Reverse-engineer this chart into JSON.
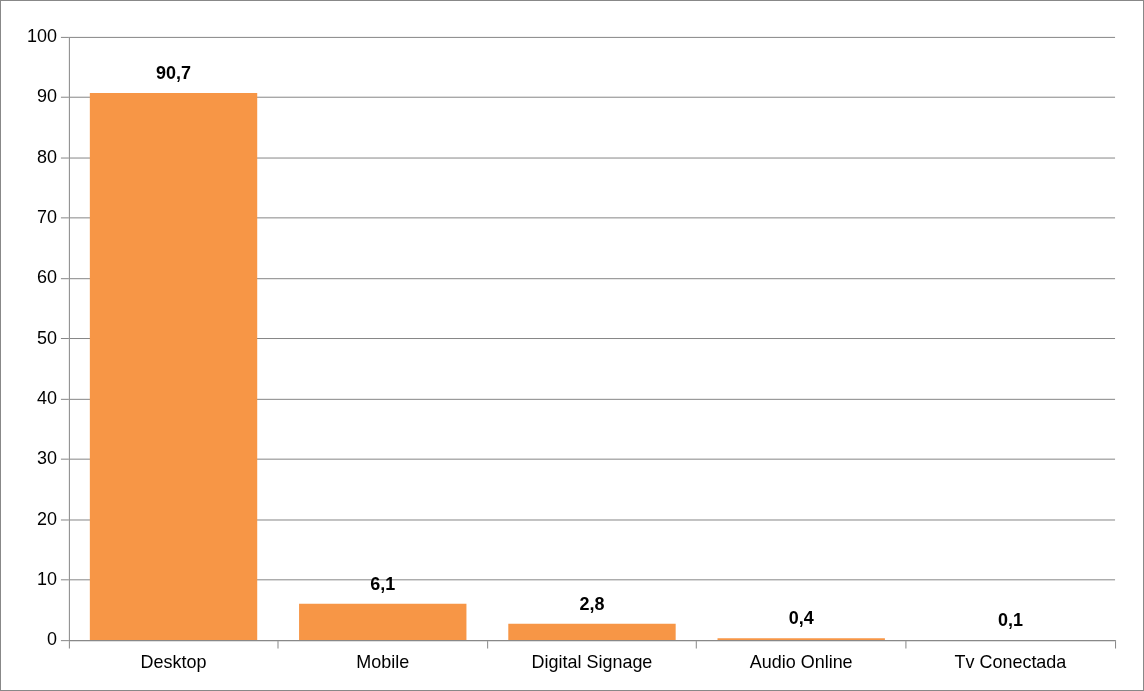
{
  "chart_data": {
    "type": "bar",
    "categories": [
      "Desktop",
      "Mobile",
      "Digital Signage",
      "Audio Online",
      "Tv Conectada"
    ],
    "values": [
      90.7,
      6.1,
      2.8,
      0.4,
      0.1
    ],
    "color": "#f79646",
    "value_labels": [
      "90,7",
      "6,1",
      "2,8",
      "0,4",
      "0,1"
    ],
    "ylim": [
      0,
      100
    ],
    "yticks": [
      0,
      10,
      20,
      30,
      40,
      50,
      60,
      70,
      80,
      90,
      100
    ],
    "grid": "y",
    "legend": false
  }
}
